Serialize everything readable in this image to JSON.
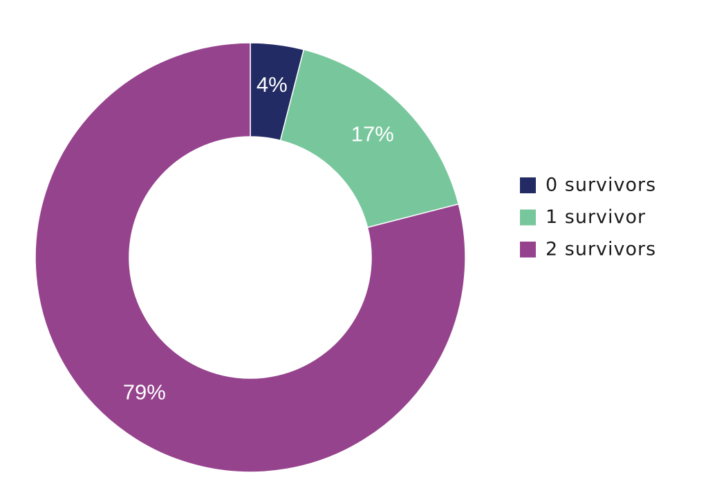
{
  "chart_data": {
    "type": "donut",
    "categories": [
      "0 survivors",
      "1 survivor",
      "2 survivors"
    ],
    "values": [
      4,
      17,
      79
    ],
    "value_labels": [
      "4%",
      "17%",
      "79%"
    ],
    "colors": [
      "#222b63",
      "#78c79c",
      "#96438e"
    ],
    "legend": "right"
  }
}
